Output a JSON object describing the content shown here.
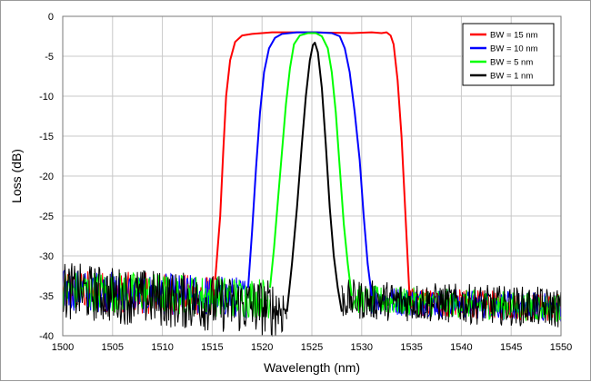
{
  "chart_data": {
    "type": "line",
    "title": "",
    "xlabel": "Wavelength (nm)",
    "ylabel": "Loss (dB)",
    "xlim": [
      1500,
      1550
    ],
    "ylim": [
      -40,
      0
    ],
    "x_ticks": [
      "1500",
      "1505",
      "1510",
      "1515",
      "1520",
      "1525",
      "1530",
      "1535",
      "1540",
      "1545",
      "1550"
    ],
    "y_ticks": [
      "0",
      "-5",
      "-10",
      "-15",
      "-20",
      "-25",
      "-30",
      "-35",
      "-40"
    ],
    "grid": true,
    "legend_position": "top-right",
    "noise_floor_db": {
      "left_edge": -34,
      "right_edge": -36.5
    },
    "series": [
      {
        "name": "BW = 15 nm",
        "color": "#ff0000",
        "x": [
          1515.3,
          1515.8,
          1516.1,
          1516.4,
          1516.8,
          1517.3,
          1518.0,
          1519.0,
          1521.0,
          1525.0,
          1529.0,
          1531.0,
          1532.0,
          1532.5,
          1532.9,
          1533.2,
          1533.6,
          1534.0,
          1534.4,
          1534.8
        ],
        "values": [
          -33,
          -25,
          -17,
          -10,
          -5.5,
          -3.2,
          -2.4,
          -2.2,
          -2.0,
          -2.0,
          -2.1,
          -2.0,
          -2.1,
          -2.0,
          -2.4,
          -3.5,
          -8,
          -15,
          -25,
          -35
        ]
      },
      {
        "name": "BW = 10 nm",
        "color": "#0000ff",
        "x": [
          1518.6,
          1519.0,
          1519.4,
          1519.8,
          1520.2,
          1520.7,
          1521.3,
          1522.0,
          1523.5,
          1525.5,
          1527.0,
          1527.8,
          1528.3,
          1528.8,
          1529.3,
          1529.8,
          1530.2,
          1530.6,
          1531.0
        ],
        "values": [
          -34,
          -27,
          -19,
          -12,
          -7,
          -4,
          -2.7,
          -2.2,
          -2.0,
          -2.0,
          -2.1,
          -2.5,
          -4,
          -7,
          -12,
          -18,
          -25,
          -31,
          -35
        ]
      },
      {
        "name": "BW = 5 nm",
        "color": "#00ff00",
        "x": [
          1520.8,
          1521.2,
          1521.6,
          1522.0,
          1522.4,
          1522.8,
          1523.2,
          1523.8,
          1524.6,
          1525.4,
          1526.0,
          1526.6,
          1527.0,
          1527.4,
          1527.8,
          1528.2,
          1528.6,
          1529.0
        ],
        "values": [
          -34,
          -29,
          -23,
          -17,
          -11,
          -6.5,
          -3.5,
          -2.4,
          -2.1,
          -2.1,
          -2.5,
          -4,
          -7,
          -12,
          -19,
          -26,
          -31,
          -35
        ]
      },
      {
        "name": "BW = 1 nm",
        "color": "#000000",
        "x": [
          1522.5,
          1523.0,
          1523.5,
          1524.0,
          1524.4,
          1524.8,
          1525.1,
          1525.3,
          1525.6,
          1526.0,
          1526.4,
          1526.8,
          1527.2,
          1527.6,
          1528.0
        ],
        "values": [
          -37,
          -31,
          -24,
          -16,
          -10,
          -5.5,
          -3.6,
          -3.3,
          -4.5,
          -9,
          -16,
          -24,
          -30,
          -34,
          -37
        ]
      }
    ]
  }
}
